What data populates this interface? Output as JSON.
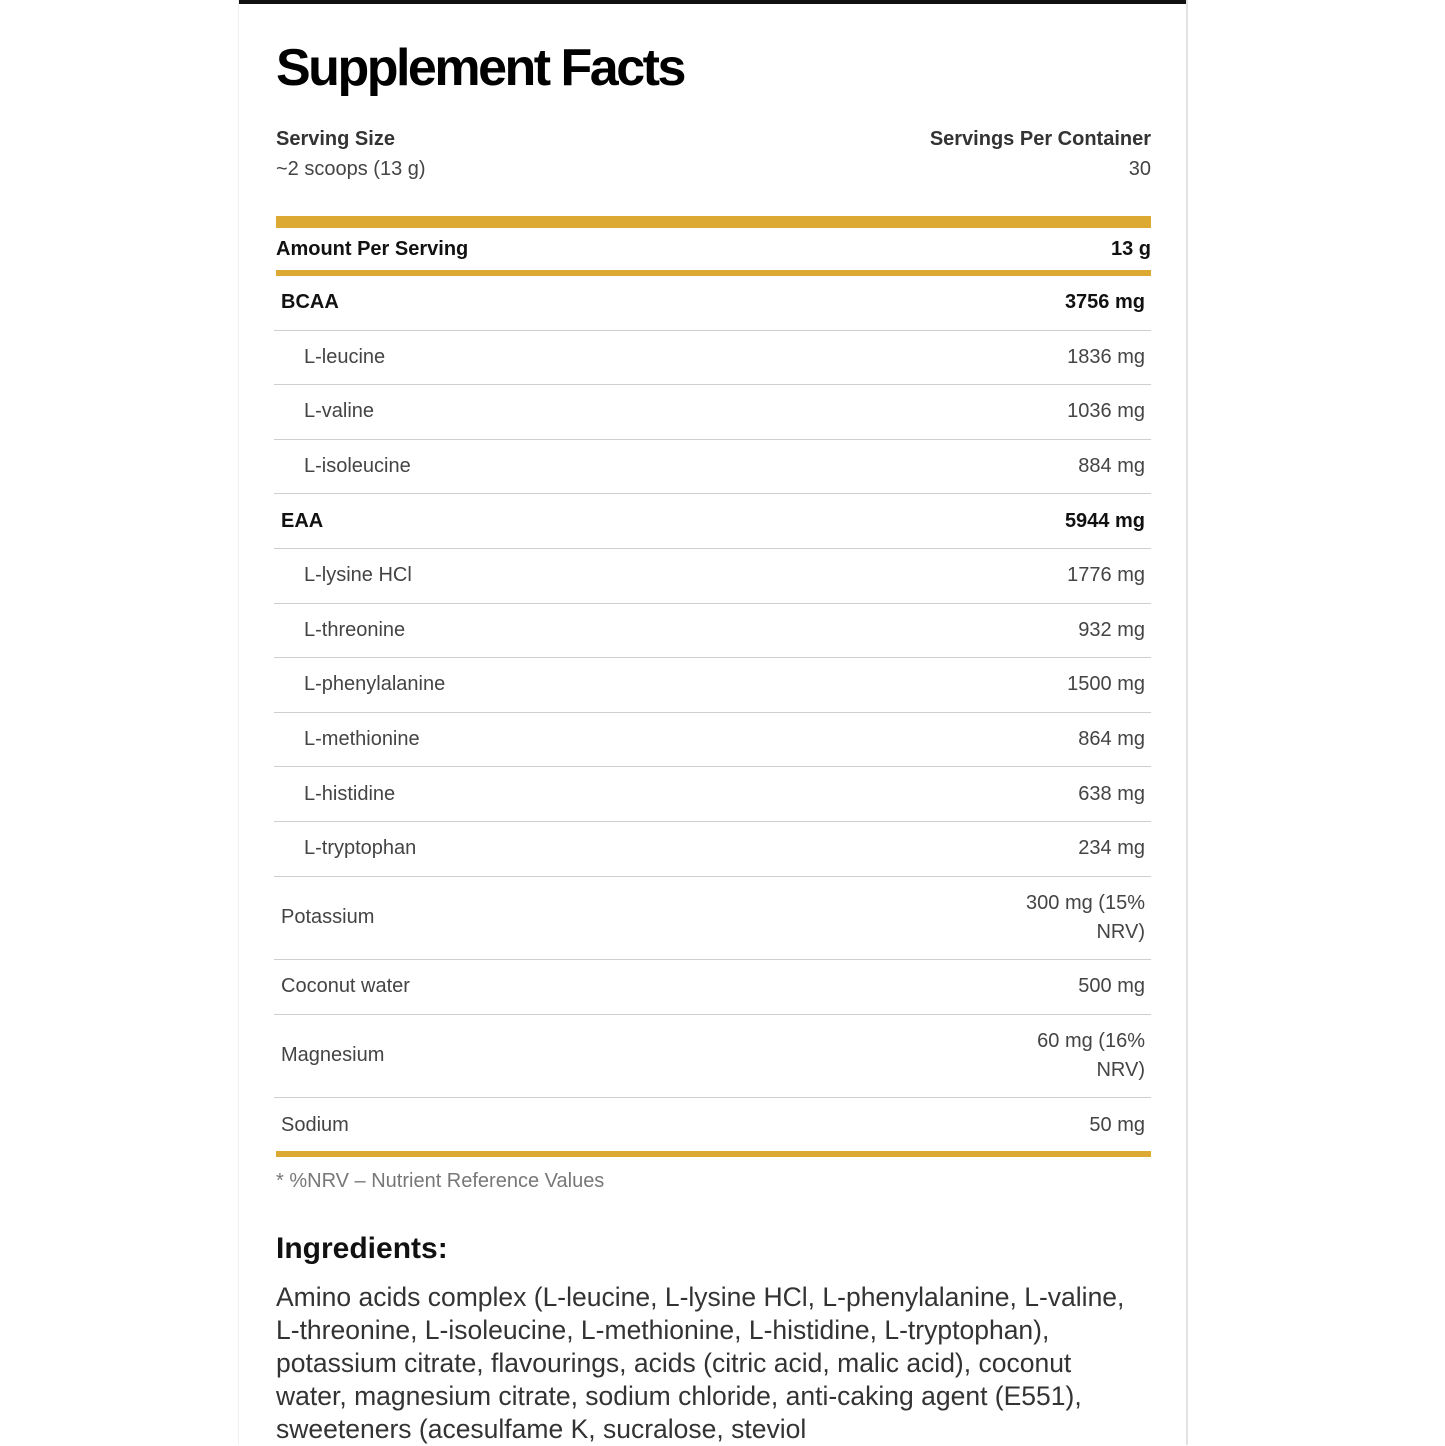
{
  "title": "Supplement Facts",
  "serving_size": {
    "label": "Serving Size",
    "value": "~2 scoops (13 g)"
  },
  "servings_per_container": {
    "label": "Servings Per Container",
    "value": "30"
  },
  "amount_per_serving": {
    "label": "Amount Per Serving",
    "value": "13 g"
  },
  "rows": [
    {
      "name": "BCAA",
      "amount": "3756 mg",
      "type": "group"
    },
    {
      "name": "L-leucine",
      "amount": "1836 mg",
      "type": "sub"
    },
    {
      "name": "L-valine",
      "amount": "1036 mg",
      "type": "sub"
    },
    {
      "name": "L-isoleucine",
      "amount": "884 mg",
      "type": "sub"
    },
    {
      "name": "EAA",
      "amount": "5944 mg",
      "type": "group"
    },
    {
      "name": "L-lysine HCl",
      "amount": "1776 mg",
      "type": "sub"
    },
    {
      "name": "L-threonine",
      "amount": "932 mg",
      "type": "sub"
    },
    {
      "name": "L-phenylalanine",
      "amount": "1500 mg",
      "type": "sub"
    },
    {
      "name": "L-methionine",
      "amount": "864 mg",
      "type": "sub"
    },
    {
      "name": "L-histidine",
      "amount": "638 mg",
      "type": "sub"
    },
    {
      "name": "L-tryptophan",
      "amount": "234 mg",
      "type": "sub"
    },
    {
      "name": "Potassium",
      "amount": "300 mg (15% NRV)",
      "type": "plain"
    },
    {
      "name": "Coconut water",
      "amount": "500 mg",
      "type": "plain"
    },
    {
      "name": "Magnesium",
      "amount": "60 mg (16% NRV)",
      "type": "plain"
    },
    {
      "name": "Sodium",
      "amount": "50 mg",
      "type": "plain"
    }
  ],
  "footnote": "* %NRV – Nutrient Reference Values",
  "ingredients": {
    "heading": "Ingredients:",
    "text": "Amino acids complex (L-leucine, L-lysine HCl, L-phenylalanine, L-valine, L-threonine, L-isoleucine, L-methionine, L-histidine, L-tryptophan), potassium citrate, flavourings, acids (citric acid, malic acid), coconut water, magnesium citrate, sodium chloride, anti-caking agent (E551), sweeteners (acesulfame K, sucralose, steviol"
  },
  "colors": {
    "accent": "#dcaa32",
    "top_bar": "#111111"
  }
}
